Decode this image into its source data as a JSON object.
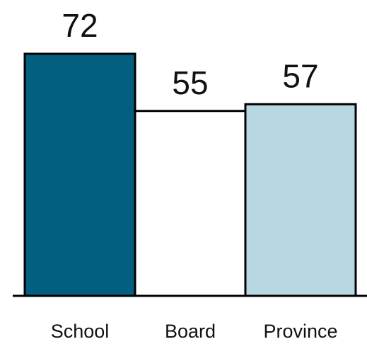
{
  "chart_data": {
    "type": "bar",
    "categories": [
      "School",
      "Board",
      "Province"
    ],
    "values": [
      72,
      55,
      57
    ],
    "colors": [
      "#035f7f",
      "#ffffff",
      "#b9d7e3"
    ],
    "ylim": [
      0,
      80
    ]
  }
}
